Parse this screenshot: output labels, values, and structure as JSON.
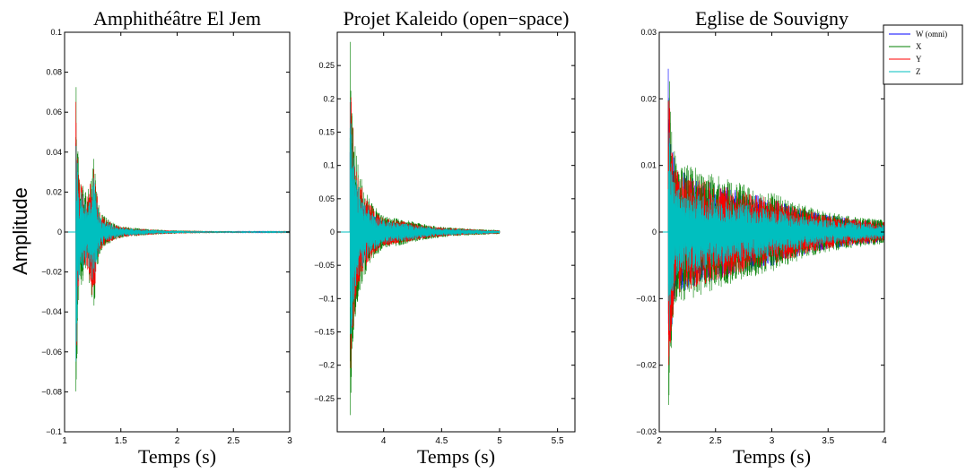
{
  "figure": {
    "ylabel": "Amplitude",
    "legend": {
      "placement": "top-right",
      "entries": [
        {
          "name": "W (omni)",
          "color": "#0000ff"
        },
        {
          "name": "X",
          "color": "#008000"
        },
        {
          "name": "Y",
          "color": "#ff0000"
        },
        {
          "name": "Z",
          "color": "#00bfbf"
        }
      ]
    }
  },
  "chart_data": [
    {
      "type": "line",
      "title": "Amphithéâtre El Jem",
      "xlabel": "Temps (s)",
      "xlim": [
        1,
        3
      ],
      "ylim": [
        -0.1,
        0.1
      ],
      "xticks": [
        1,
        1.5,
        2,
        2.5,
        3
      ],
      "xtick_labels": [
        "1",
        "1.5",
        "2",
        "2.5",
        "3"
      ],
      "yticks": [
        -0.1,
        -0.08,
        -0.06,
        -0.04,
        -0.02,
        0,
        0.02,
        0.04,
        0.06,
        0.08,
        0.1
      ],
      "ytick_labels": [
        "−0.1",
        "−0.08",
        "−0.06",
        "−0.04",
        "−0.02",
        "0",
        "0.02",
        "0.04",
        "0.06",
        "0.08",
        "0.1"
      ],
      "signal": {
        "onset": 1.1,
        "end": 3.0,
        "envelope": [
          [
            1.1,
            0.1
          ],
          [
            1.13,
            0.03
          ],
          [
            1.2,
            0.02
          ],
          [
            1.26,
            0.042
          ],
          [
            1.32,
            0.01
          ],
          [
            1.5,
            0.003
          ],
          [
            2.0,
            0.0008
          ],
          [
            3.0,
            0.0002
          ]
        ],
        "series_scale": {
          "W (omni)": 0.6,
          "X": 1.0,
          "Y": 0.9,
          "Z": 0.75
        }
      }
    },
    {
      "type": "line",
      "title": "Projet Kaleido (open−space)",
      "xlabel": "Temps (s)",
      "xlim": [
        3.6,
        5.65
      ],
      "ylim": [
        -0.3,
        0.3
      ],
      "xticks": [
        4,
        4.5,
        5,
        5.5
      ],
      "xtick_labels": [
        "4",
        "4.5",
        "5",
        "5.5"
      ],
      "yticks": [
        -0.25,
        -0.2,
        -0.15,
        -0.1,
        -0.05,
        0,
        0.05,
        0.1,
        0.15,
        0.2,
        0.25
      ],
      "ytick_labels": [
        "−0.25",
        "−0.2",
        "−0.15",
        "−0.1",
        "−0.05",
        "0",
        "0.05",
        "0.1",
        "0.15",
        "0.2",
        "0.25"
      ],
      "signal": {
        "onset": 3.71,
        "end": 5.0,
        "envelope": [
          [
            3.71,
            0.3
          ],
          [
            3.73,
            0.2
          ],
          [
            3.76,
            0.12
          ],
          [
            3.85,
            0.06
          ],
          [
            4.0,
            0.025
          ],
          [
            4.2,
            0.018
          ],
          [
            4.5,
            0.008
          ],
          [
            5.0,
            0.003
          ]
        ],
        "series_scale": {
          "W (omni)": 0.6,
          "X": 1.0,
          "Y": 0.85,
          "Z": 0.7
        }
      }
    },
    {
      "type": "line",
      "title": "Eglise de Souvigny",
      "xlabel": "Temps (s)",
      "xlim": [
        2,
        4
      ],
      "ylim": [
        -0.03,
        0.03
      ],
      "xticks": [
        2,
        2.5,
        3,
        3.5,
        4
      ],
      "xtick_labels": [
        "2",
        "2.5",
        "3",
        "3.5",
        "4"
      ],
      "yticks": [
        -0.03,
        -0.02,
        -0.01,
        0,
        0.01,
        0.02,
        0.03
      ],
      "ytick_labels": [
        "−0.03",
        "−0.02",
        "−0.01",
        "0",
        "0.01",
        "0.02",
        "0.03"
      ],
      "signal": {
        "onset": 2.08,
        "end": 4.0,
        "envelope": [
          [
            2.08,
            0.03
          ],
          [
            2.1,
            0.02
          ],
          [
            2.15,
            0.011
          ],
          [
            2.3,
            0.01
          ],
          [
            2.6,
            0.008
          ],
          [
            3.0,
            0.006
          ],
          [
            3.5,
            0.003
          ],
          [
            4.0,
            0.0018
          ]
        ],
        "series_scale": {
          "W (omni)": 0.85,
          "X": 1.0,
          "Y": 0.85,
          "Z": 0.6
        }
      }
    }
  ]
}
